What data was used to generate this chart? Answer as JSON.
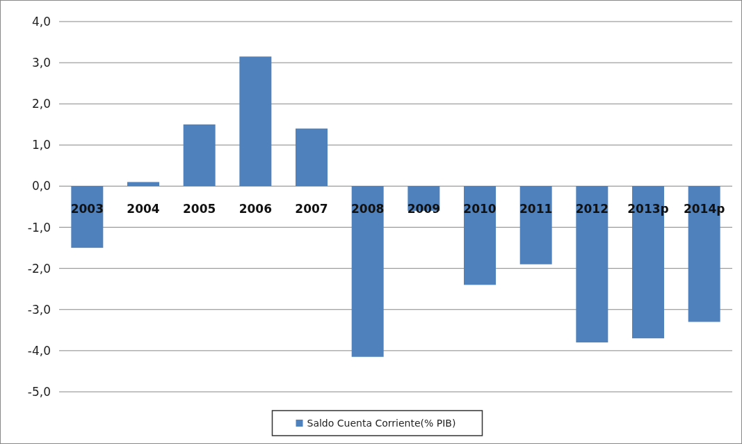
{
  "chart_data": {
    "type": "bar",
    "categories": [
      "2003",
      "2004",
      "2005",
      "2006",
      "2007",
      "2008",
      "2009",
      "2010",
      "2011",
      "2012",
      "2013p",
      "2014p"
    ],
    "series": [
      {
        "name": "Saldo Cuenta Corriente(% PIB)",
        "color": "#4f81bd",
        "values": [
          -1.5,
          0.1,
          1.5,
          3.15,
          1.4,
          -4.15,
          -0.6,
          -2.4,
          -1.9,
          -3.8,
          -3.7,
          -3.3
        ]
      }
    ],
    "ylim": [
      -5,
      4
    ],
    "yticks": [
      {
        "value": -5,
        "label": "-5,0"
      },
      {
        "value": -4,
        "label": "-4,0"
      },
      {
        "value": -3,
        "label": "-3,0"
      },
      {
        "value": -2,
        "label": "-2,0"
      },
      {
        "value": -1,
        "label": "-1,0"
      },
      {
        "value": 0,
        "label": "0,0"
      },
      {
        "value": 1,
        "label": "1,0"
      },
      {
        "value": 2,
        "label": "2,0"
      },
      {
        "value": 3,
        "label": "3,0"
      },
      {
        "value": 4,
        "label": "4,0"
      }
    ],
    "grid": "y",
    "legend": "bottom"
  }
}
